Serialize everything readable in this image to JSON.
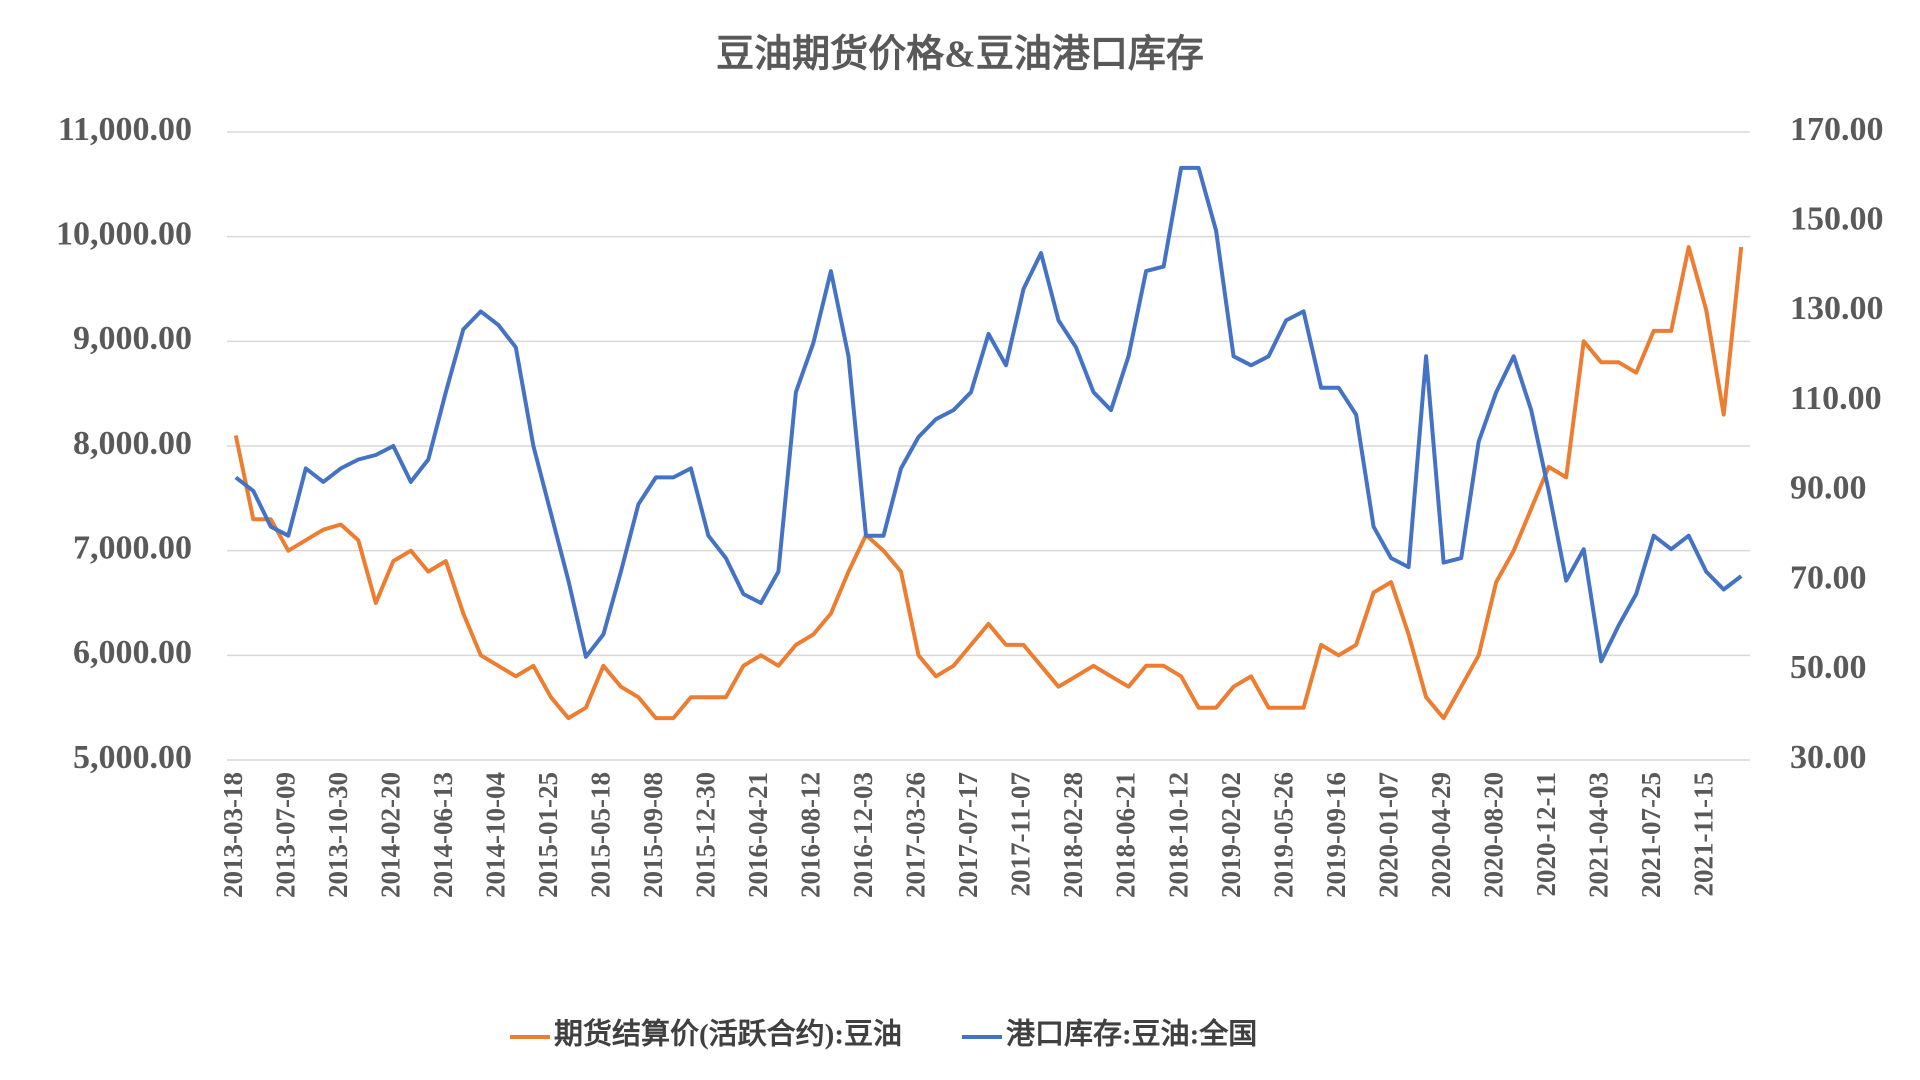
{
  "chart_data": {
    "type": "line",
    "title": "豆油期货价格&豆油港口库存",
    "categories": [
      "2013-03-18",
      null,
      null,
      "2013-07-09",
      null,
      null,
      "2013-10-30",
      null,
      null,
      "2014-02-20",
      null,
      null,
      "2014-06-13",
      null,
      null,
      "2014-10-04",
      null,
      null,
      "2015-01-25",
      null,
      null,
      "2015-05-18",
      null,
      null,
      "2015-09-08",
      null,
      null,
      "2015-12-30",
      null,
      null,
      "2016-04-21",
      null,
      null,
      "2016-08-12",
      null,
      null,
      "2016-12-03",
      null,
      null,
      "2017-03-26",
      null,
      null,
      "2017-07-17",
      null,
      null,
      "2017-11-07",
      null,
      null,
      "2018-02-28",
      null,
      null,
      "2018-06-21",
      null,
      null,
      "2018-10-12",
      null,
      null,
      "2019-02-02",
      null,
      null,
      "2019-05-26",
      null,
      null,
      "2019-09-16",
      null,
      null,
      "2020-01-07",
      null,
      null,
      "2020-04-29",
      null,
      null,
      "2020-08-20",
      null,
      null,
      "2020-12-11",
      null,
      null,
      "2021-04-03",
      null,
      null,
      "2021-07-25",
      null,
      null,
      "2021-11-15",
      null,
      null
    ],
    "series": [
      {
        "name": "期货结算价(活跃合约):豆油",
        "color": "#ed7d31",
        "axis": "y",
        "values": [
          8100,
          7300,
          7300,
          7000,
          7100,
          7200,
          7250,
          7100,
          6500,
          6900,
          7000,
          6800,
          6900,
          6400,
          6000,
          5900,
          5800,
          5900,
          5600,
          5400,
          5500,
          5900,
          5700,
          5600,
          5400,
          5400,
          5600,
          5600,
          5600,
          5900,
          6000,
          5900,
          6100,
          6200,
          6400,
          6800,
          7150,
          7000,
          6800,
          6000,
          5800,
          5900,
          6100,
          6300,
          6100,
          6100,
          5900,
          5700,
          5800,
          5900,
          5800,
          5700,
          5900,
          5900,
          5800,
          5500,
          5500,
          5700,
          5800,
          5500,
          5500,
          5500,
          6100,
          6000,
          6100,
          6600,
          6700,
          6200,
          5600,
          5400,
          5700,
          6000,
          6700,
          7000,
          7400,
          7800,
          7700,
          9000,
          8800,
          8800,
          8700,
          9100,
          9100,
          9900,
          9300,
          8300,
          9900
        ]
      },
      {
        "name": "港口库存:豆油:全国",
        "color": "#4472c4",
        "axis": "y2",
        "values": [
          93,
          90,
          82,
          80,
          95,
          92,
          95,
          97,
          98,
          100,
          92,
          97,
          112,
          126,
          130,
          127,
          122,
          100,
          85,
          70,
          53,
          58,
          72,
          87,
          93,
          93,
          95,
          80,
          75,
          67,
          65,
          72,
          112,
          123,
          139,
          120,
          80,
          80,
          95,
          102,
          106,
          108,
          112,
          125,
          118,
          135,
          143,
          128,
          122,
          112,
          108,
          120,
          139,
          140,
          162,
          162,
          148,
          120,
          118,
          120,
          128,
          130,
          113,
          113,
          107,
          82,
          75,
          73,
          120,
          74,
          75,
          101,
          112,
          120,
          108,
          90,
          70,
          77,
          52,
          60,
          67,
          80,
          77,
          80,
          72,
          68,
          71
        ]
      }
    ],
    "ylim": [
      5000,
      11000
    ],
    "yticks": [
      {
        "value": 5000,
        "label": "5,000.00"
      },
      {
        "value": 6000,
        "label": "6,000.00"
      },
      {
        "value": 7000,
        "label": "7,000.00"
      },
      {
        "value": 8000,
        "label": "8,000.00"
      },
      {
        "value": 9000,
        "label": "9,000.00"
      },
      {
        "value": 10000,
        "label": "10,000.00"
      },
      {
        "value": 11000,
        "label": "11,000.00"
      }
    ],
    "y2lim": [
      30,
      170
    ],
    "y2ticks": [
      {
        "value": 30,
        "label": "30.00"
      },
      {
        "value": 50,
        "label": "50.00"
      },
      {
        "value": 70,
        "label": "70.00"
      },
      {
        "value": 90,
        "label": "90.00"
      },
      {
        "value": 110,
        "label": "110.00"
      },
      {
        "value": 130,
        "label": "130.00"
      },
      {
        "value": 150,
        "label": "150.00"
      },
      {
        "value": 170,
        "label": "170.00"
      }
    ],
    "grid": true
  }
}
